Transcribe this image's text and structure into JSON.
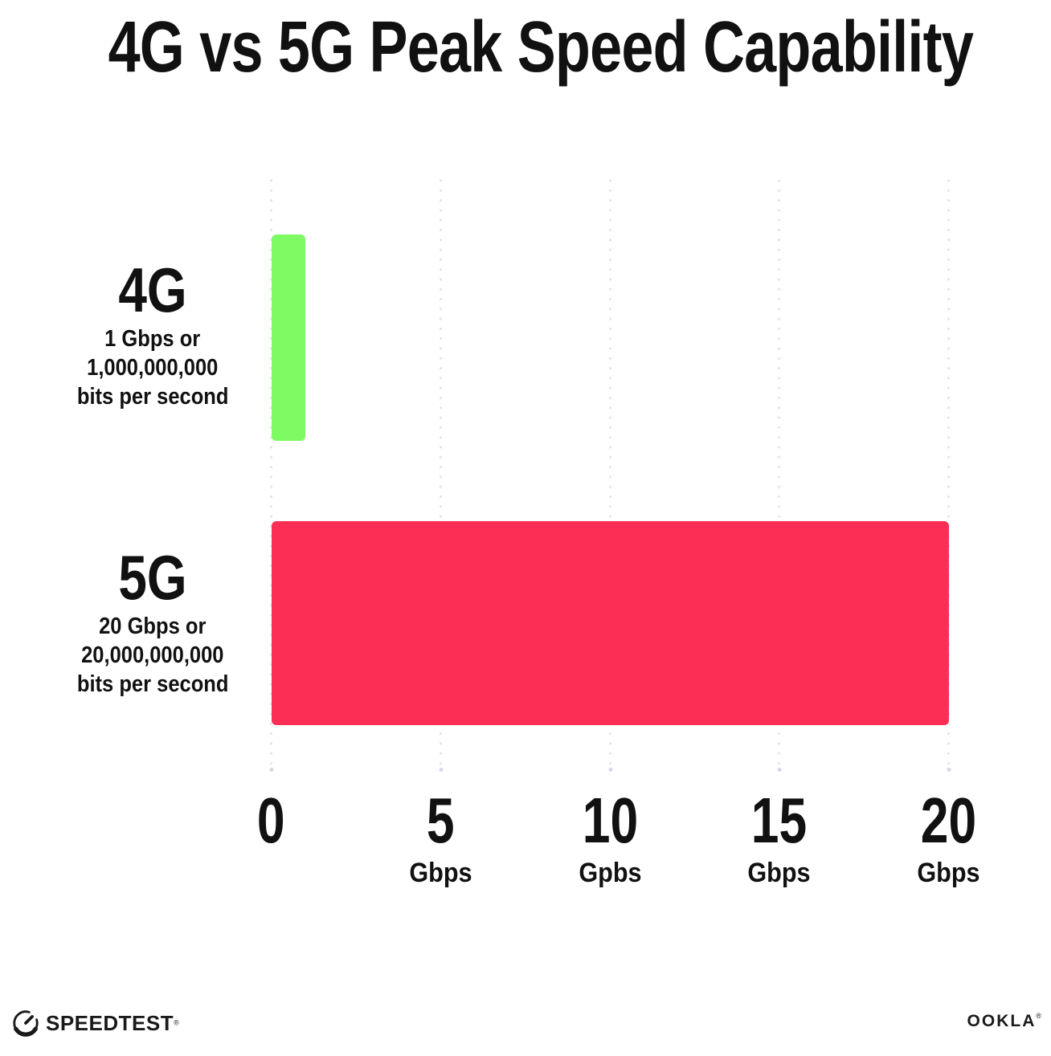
{
  "title": "4G vs 5G Peak Speed Capability",
  "chart_data": {
    "type": "bar",
    "orientation": "horizontal",
    "title": "4G vs 5G Peak Speed Capability",
    "categories": [
      "4G",
      "5G"
    ],
    "values": [
      1,
      20
    ],
    "value_unit": "Gbps",
    "bar_colors": [
      "#7EFA63",
      "#FC2E56"
    ],
    "xlabel": "",
    "ylabel": "",
    "xlim": [
      0,
      20
    ],
    "x_ticks": [
      0,
      5,
      10,
      15,
      20
    ],
    "grid": "vertical dotted gridlines at each x tick",
    "legend": "none",
    "annotations": [
      "4G: 1 Gbps or 1,000,000,000 bits per second",
      "5G: 20 Gbps or 20,000,000,000 bits per second"
    ]
  },
  "rows": [
    {
      "label": "4G",
      "desc": [
        "1 Gbps or",
        "1,000,000,000",
        "bits per second"
      ],
      "value": 1,
      "color": "#7EFA63"
    },
    {
      "label": "5G",
      "desc": [
        "20 Gbps or",
        "20,000,000,000",
        "bits per second"
      ],
      "value": 20,
      "color": "#FC2E56"
    }
  ],
  "x_axis": {
    "ticks": [
      {
        "number": "0",
        "unit": ""
      },
      {
        "number": "5",
        "unit": "Gbps"
      },
      {
        "number": "10",
        "unit": "Gpbs"
      },
      {
        "number": "15",
        "unit": "Gbps"
      },
      {
        "number": "20",
        "unit": "Gbps"
      }
    ]
  },
  "footer": {
    "speedtest": "SPEEDTEST",
    "speedtest_mark": "®",
    "ookla": "OOKLA",
    "ookla_mark": "®"
  },
  "colors": {
    "background": "#FFFFFF",
    "text": "#111111",
    "bar_4g": "#7EFA63",
    "bar_5g": "#FC2E56",
    "gridline": "#DFE2EF"
  }
}
